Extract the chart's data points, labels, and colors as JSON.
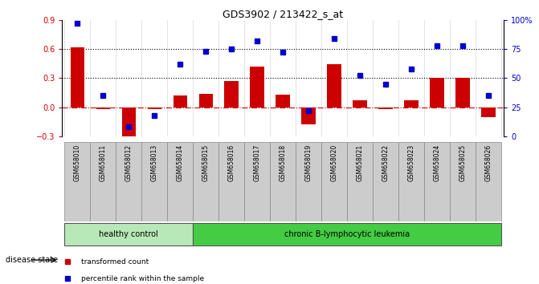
{
  "title": "GDS3902 / 213422_s_at",
  "samples": [
    "GSM658010",
    "GSM658011",
    "GSM658012",
    "GSM658013",
    "GSM658014",
    "GSM658015",
    "GSM658016",
    "GSM658017",
    "GSM658018",
    "GSM658019",
    "GSM658020",
    "GSM658021",
    "GSM658022",
    "GSM658023",
    "GSM658024",
    "GSM658025",
    "GSM658026"
  ],
  "transformed_count": [
    0.62,
    -0.02,
    -0.32,
    -0.02,
    0.12,
    0.14,
    0.27,
    0.42,
    0.13,
    -0.18,
    0.44,
    0.07,
    -0.02,
    0.07,
    0.3,
    0.3,
    -0.1
  ],
  "percentile_rank": [
    97,
    35,
    8,
    18,
    62,
    73,
    75,
    82,
    72,
    22,
    84,
    52,
    45,
    58,
    78,
    78,
    35
  ],
  "healthy_count": 5,
  "group_labels": [
    "healthy control",
    "chronic B-lymphocytic leukemia"
  ],
  "bar_color": "#cc0000",
  "dot_color": "#0000cc",
  "left_ylim": [
    -0.3,
    0.9
  ],
  "right_ylim": [
    0,
    100
  ],
  "left_yticks": [
    -0.3,
    0.0,
    0.3,
    0.6,
    0.9
  ],
  "right_yticks": [
    0,
    25,
    50,
    75,
    100
  ],
  "right_yticklabels": [
    "0",
    "25",
    "50",
    "75",
    "100%"
  ],
  "hlines": [
    0.3,
    0.6
  ],
  "zero_line_color": "#cc0000",
  "disease_state_label": "disease state",
  "legend_labels": [
    "transformed count",
    "percentile rank within the sample"
  ],
  "legend_colors": [
    "#cc0000",
    "#0000cc"
  ],
  "healthy_color": "#b8e8b8",
  "leukemia_color": "#44cc44",
  "sample_box_color": "#cccccc"
}
